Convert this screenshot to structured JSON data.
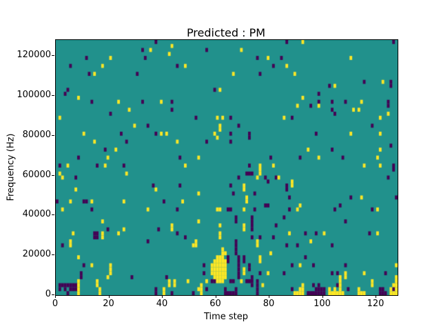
{
  "figure": {
    "title": "Predicted : PM",
    "background": "#ffffff"
  },
  "axes": {
    "xlabel": "Time step",
    "ylabel": "Frequency (Hz)",
    "xticks": [
      0,
      20,
      40,
      60,
      80,
      100,
      120
    ],
    "yticks": [
      0,
      20000,
      40000,
      60000,
      80000,
      100000,
      120000
    ],
    "xlim": [
      0,
      128
    ],
    "ylim": [
      0,
      128000
    ]
  },
  "chart_data": {
    "type": "heatmap",
    "title": "Predicted : PM",
    "xlabel": "Time step",
    "ylabel": "Frequency (Hz)",
    "xlim": [
      0,
      128
    ],
    "ylim": [
      0,
      128000
    ],
    "grid": {
      "time_steps": 128,
      "freq_bins": 64,
      "hz_per_bin": 2000
    },
    "colormap": {
      "name": "viridis-3level",
      "mid_background": "#21918c",
      "low": "#440154",
      "high": "#fde725"
    },
    "legend": "none",
    "cells_high": [
      [
        35,
        61
      ],
      [
        42,
        60
      ],
      [
        20,
        59
      ],
      [
        17,
        57
      ],
      [
        14,
        55
      ],
      [
        8,
        49
      ],
      [
        23,
        48
      ],
      [
        39,
        48
      ],
      [
        27,
        46
      ],
      [
        1,
        44
      ],
      [
        29,
        42
      ],
      [
        43,
        62
      ],
      [
        69,
        61
      ],
      [
        79,
        59
      ],
      [
        48,
        57
      ],
      [
        66,
        55
      ],
      [
        61,
        51
      ],
      [
        60,
        44
      ],
      [
        62,
        44
      ],
      [
        86,
        57
      ],
      [
        89,
        55
      ],
      [
        92,
        49
      ],
      [
        90,
        47
      ],
      [
        85,
        44
      ],
      [
        92,
        63
      ],
      [
        110,
        59
      ],
      [
        122,
        53
      ],
      [
        104,
        52
      ],
      [
        98,
        47
      ],
      [
        111,
        46
      ],
      [
        113,
        46
      ],
      [
        114,
        48
      ],
      [
        124,
        45
      ],
      [
        121,
        44
      ],
      [
        121,
        40
      ],
      [
        10,
        40
      ],
      [
        39,
        40
      ],
      [
        41,
        40
      ],
      [
        14,
        38
      ],
      [
        22,
        36
      ],
      [
        19,
        34
      ],
      [
        4,
        32
      ],
      [
        18,
        32
      ],
      [
        1,
        30
      ],
      [
        2,
        29
      ],
      [
        26,
        30
      ],
      [
        7,
        26
      ],
      [
        37,
        26
      ],
      [
        5,
        23
      ],
      [
        13,
        23
      ],
      [
        25,
        23
      ],
      [
        61,
        42
      ],
      [
        61,
        41
      ],
      [
        59,
        40
      ],
      [
        60,
        39
      ],
      [
        45,
        38
      ],
      [
        53,
        34
      ],
      [
        48,
        32
      ],
      [
        76,
        32
      ],
      [
        76,
        31
      ],
      [
        76,
        30
      ],
      [
        81,
        32
      ],
      [
        75,
        29
      ],
      [
        83,
        29
      ],
      [
        70,
        27
      ],
      [
        70,
        26
      ],
      [
        53,
        25
      ],
      [
        71,
        24
      ],
      [
        71,
        23
      ],
      [
        47,
        23
      ],
      [
        110,
        40
      ],
      [
        94,
        36
      ],
      [
        98,
        34
      ],
      [
        120,
        34
      ],
      [
        121,
        36
      ],
      [
        115,
        32
      ],
      [
        121,
        32
      ],
      [
        88,
        28
      ],
      [
        88,
        27
      ],
      [
        114,
        24
      ],
      [
        91,
        22
      ],
      [
        2,
        21
      ],
      [
        34,
        21
      ],
      [
        17,
        18
      ],
      [
        25,
        16
      ],
      [
        6,
        15
      ],
      [
        17,
        15
      ],
      [
        17,
        14
      ],
      [
        23,
        15
      ],
      [
        5,
        13
      ],
      [
        5,
        12
      ],
      [
        8,
        9
      ],
      [
        13,
        7
      ],
      [
        19,
        4
      ],
      [
        20,
        7
      ],
      [
        20,
        6
      ],
      [
        20,
        5
      ],
      [
        8,
        3
      ],
      [
        8,
        2
      ],
      [
        8,
        1
      ],
      [
        8,
        0
      ],
      [
        15,
        3
      ],
      [
        15,
        2
      ],
      [
        16,
        1
      ],
      [
        16,
        0
      ],
      [
        42,
        3
      ],
      [
        42,
        2
      ],
      [
        40,
        1
      ],
      [
        40,
        0
      ],
      [
        44,
        3
      ],
      [
        44,
        2
      ],
      [
        60,
        21
      ],
      [
        61,
        21
      ],
      [
        70,
        21
      ],
      [
        53,
        18
      ],
      [
        70,
        17
      ],
      [
        70,
        16
      ],
      [
        43,
        17
      ],
      [
        43,
        16
      ],
      [
        52,
        13
      ],
      [
        52,
        12
      ],
      [
        51,
        12
      ],
      [
        49,
        3
      ],
      [
        56,
        3
      ],
      [
        53,
        1
      ],
      [
        63,
        10
      ],
      [
        62,
        11
      ],
      [
        62,
        10
      ],
      [
        61,
        17
      ],
      [
        61,
        15
      ],
      [
        61,
        14
      ],
      [
        75,
        13
      ],
      [
        75,
        12
      ],
      [
        76,
        9
      ],
      [
        76,
        8
      ],
      [
        80,
        10
      ],
      [
        79,
        5
      ],
      [
        70,
        6
      ],
      [
        70,
        5
      ],
      [
        58,
        7
      ],
      [
        58,
        6
      ],
      [
        58,
        5
      ],
      [
        59,
        8
      ],
      [
        59,
        7
      ],
      [
        59,
        6
      ],
      [
        59,
        5
      ],
      [
        59,
        4
      ],
      [
        60,
        9
      ],
      [
        60,
        8
      ],
      [
        60,
        7
      ],
      [
        60,
        6
      ],
      [
        60,
        5
      ],
      [
        60,
        4
      ],
      [
        60,
        3
      ],
      [
        61,
        9
      ],
      [
        61,
        8
      ],
      [
        61,
        7
      ],
      [
        61,
        6
      ],
      [
        61,
        5
      ],
      [
        61,
        4
      ],
      [
        61,
        3
      ],
      [
        62,
        9
      ],
      [
        62,
        8
      ],
      [
        62,
        7
      ],
      [
        62,
        6
      ],
      [
        62,
        5
      ],
      [
        62,
        4
      ],
      [
        62,
        3
      ],
      [
        63,
        8
      ],
      [
        63,
        7
      ],
      [
        63,
        6
      ],
      [
        63,
        5
      ],
      [
        63,
        4
      ],
      [
        54,
        2
      ],
      [
        54,
        1
      ],
      [
        54,
        0
      ],
      [
        69,
        3
      ],
      [
        77,
        2
      ],
      [
        90,
        21
      ],
      [
        120,
        21
      ],
      [
        87,
        15
      ],
      [
        100,
        15
      ],
      [
        120,
        15
      ],
      [
        95,
        13
      ],
      [
        91,
        7
      ],
      [
        108,
        5
      ],
      [
        108,
        4
      ],
      [
        115,
        5
      ],
      [
        127,
        7
      ],
      [
        89,
        0
      ],
      [
        90,
        0
      ],
      [
        91,
        1
      ],
      [
        91,
        0
      ],
      [
        92,
        2
      ],
      [
        92,
        1
      ],
      [
        92,
        0
      ],
      [
        102,
        1
      ],
      [
        102,
        0
      ],
      [
        103,
        0
      ],
      [
        104,
        1
      ],
      [
        104,
        0
      ],
      [
        105,
        0
      ],
      [
        106,
        4
      ],
      [
        106,
        3
      ],
      [
        106,
        2
      ],
      [
        106,
        1
      ],
      [
        106,
        0
      ],
      [
        107,
        0
      ],
      [
        113,
        1
      ],
      [
        113,
        0
      ],
      [
        114,
        0
      ],
      [
        115,
        0
      ],
      [
        118,
        3
      ],
      [
        118,
        2
      ],
      [
        125,
        1
      ],
      [
        125,
        0
      ],
      [
        126,
        2
      ],
      [
        126,
        0
      ],
      [
        127,
        4
      ],
      [
        127,
        3
      ],
      [
        127,
        2
      ],
      [
        127,
        1
      ],
      [
        127,
        0
      ]
    ],
    "cells_low": [
      [
        37,
        63
      ],
      [
        32,
        61
      ],
      [
        33,
        59
      ],
      [
        11,
        59
      ],
      [
        5,
        57
      ],
      [
        12,
        55
      ],
      [
        30,
        55
      ],
      [
        4,
        51
      ],
      [
        3,
        50
      ],
      [
        13,
        48
      ],
      [
        32,
        48
      ],
      [
        20,
        45
      ],
      [
        34,
        42
      ],
      [
        56,
        61
      ],
      [
        75,
        59
      ],
      [
        84,
        59
      ],
      [
        45,
        57
      ],
      [
        81,
        57
      ],
      [
        76,
        55
      ],
      [
        59,
        51
      ],
      [
        43,
        48
      ],
      [
        43,
        46
      ],
      [
        52,
        44
      ],
      [
        65,
        44
      ],
      [
        68,
        42
      ],
      [
        86,
        63
      ],
      [
        126,
        63
      ],
      [
        115,
        53
      ],
      [
        125,
        53
      ],
      [
        125,
        52
      ],
      [
        102,
        52
      ],
      [
        98,
        50
      ],
      [
        98,
        48
      ],
      [
        95,
        47
      ],
      [
        103,
        48
      ],
      [
        108,
        48
      ],
      [
        103,
        46
      ],
      [
        104,
        45
      ],
      [
        88,
        44
      ],
      [
        124,
        48
      ],
      [
        124,
        47
      ],
      [
        125,
        37
      ],
      [
        118,
        42
      ],
      [
        24,
        40
      ],
      [
        37,
        40
      ],
      [
        26,
        38
      ],
      [
        18,
        36
      ],
      [
        8,
        34
      ],
      [
        1,
        32
      ],
      [
        15,
        32
      ],
      [
        25,
        32
      ],
      [
        7,
        29
      ],
      [
        36,
        27
      ],
      [
        0,
        23
      ],
      [
        10,
        23
      ],
      [
        11,
        23
      ],
      [
        40,
        23
      ],
      [
        65,
        40
      ],
      [
        72,
        40
      ],
      [
        72,
        39
      ],
      [
        56,
        38
      ],
      [
        65,
        38
      ],
      [
        46,
        34
      ],
      [
        80,
        34
      ],
      [
        72,
        32
      ],
      [
        71,
        30
      ],
      [
        72,
        30
      ],
      [
        73,
        30
      ],
      [
        68,
        29
      ],
      [
        78,
        29
      ],
      [
        79,
        28
      ],
      [
        82,
        29
      ],
      [
        65,
        27
      ],
      [
        46,
        27
      ],
      [
        66,
        25
      ],
      [
        74,
        25
      ],
      [
        78,
        22
      ],
      [
        79,
        22
      ],
      [
        97,
        40
      ],
      [
        103,
        36
      ],
      [
        91,
        34
      ],
      [
        107,
        34
      ],
      [
        126,
        32
      ],
      [
        126,
        31
      ],
      [
        124,
        29
      ],
      [
        86,
        27
      ],
      [
        86,
        26
      ],
      [
        87,
        24
      ],
      [
        110,
        24
      ],
      [
        127,
        24
      ],
      [
        106,
        22
      ],
      [
        13,
        21
      ],
      [
        19,
        16
      ],
      [
        38,
        16
      ],
      [
        14,
        15
      ],
      [
        15,
        15
      ],
      [
        14,
        14
      ],
      [
        15,
        14
      ],
      [
        2,
        12
      ],
      [
        34,
        13
      ],
      [
        10,
        7
      ],
      [
        9,
        5
      ],
      [
        9,
        4
      ],
      [
        28,
        4
      ],
      [
        1,
        2
      ],
      [
        1,
        1
      ],
      [
        2,
        2
      ],
      [
        3,
        2
      ],
      [
        3,
        1
      ],
      [
        4,
        2
      ],
      [
        5,
        2
      ],
      [
        5,
        1
      ],
      [
        6,
        2
      ],
      [
        6,
        1
      ],
      [
        7,
        2
      ],
      [
        7,
        1
      ],
      [
        4,
        0
      ],
      [
        37,
        1
      ],
      [
        37,
        0
      ],
      [
        43,
        0
      ],
      [
        51,
        0
      ],
      [
        45,
        21
      ],
      [
        64,
        21
      ],
      [
        65,
        21
      ],
      [
        74,
        21
      ],
      [
        67,
        19
      ],
      [
        67,
        18
      ],
      [
        73,
        19
      ],
      [
        73,
        18
      ],
      [
        73,
        17
      ],
      [
        73,
        16
      ],
      [
        73,
        14
      ],
      [
        45,
        15
      ],
      [
        48,
        14
      ],
      [
        55,
        7
      ],
      [
        55,
        5
      ],
      [
        58,
        3
      ],
      [
        59,
        3
      ],
      [
        67,
        13
      ],
      [
        67,
        12
      ],
      [
        67,
        11
      ],
      [
        67,
        10
      ],
      [
        70,
        9
      ],
      [
        70,
        8
      ],
      [
        72,
        7
      ],
      [
        72,
        6
      ],
      [
        73,
        4
      ],
      [
        73,
        3
      ],
      [
        73,
        2
      ],
      [
        76,
        14
      ],
      [
        76,
        5
      ],
      [
        81,
        14
      ],
      [
        82,
        17
      ],
      [
        85,
        19
      ],
      [
        64,
        9
      ],
      [
        64,
        8
      ],
      [
        68,
        9
      ],
      [
        68,
        8
      ],
      [
        68,
        7
      ],
      [
        68,
        6
      ],
      [
        68,
        5
      ],
      [
        68,
        4
      ],
      [
        65,
        3
      ],
      [
        66,
        3
      ],
      [
        41,
        4
      ],
      [
        56,
        1
      ],
      [
        63,
        1
      ],
      [
        63,
        0
      ],
      [
        64,
        0
      ],
      [
        65,
        0
      ],
      [
        66,
        0
      ],
      [
        67,
        1
      ],
      [
        67,
        0
      ],
      [
        71,
        3
      ],
      [
        72,
        3
      ],
      [
        75,
        3
      ],
      [
        75,
        2
      ],
      [
        75,
        1
      ],
      [
        75,
        0
      ],
      [
        87,
        21
      ],
      [
        104,
        21
      ],
      [
        118,
        21
      ],
      [
        108,
        18
      ],
      [
        93,
        15
      ],
      [
        97,
        15
      ],
      [
        117,
        15
      ],
      [
        86,
        12
      ],
      [
        90,
        12
      ],
      [
        103,
        12
      ],
      [
        93,
        9
      ],
      [
        88,
        7
      ],
      [
        96,
        7
      ],
      [
        108,
        7
      ],
      [
        85,
        5
      ],
      [
        103,
        5
      ],
      [
        105,
        5
      ],
      [
        123,
        5
      ],
      [
        88,
        1
      ],
      [
        96,
        2
      ],
      [
        98,
        2
      ],
      [
        97,
        1
      ],
      [
        98,
        1
      ],
      [
        99,
        1
      ],
      [
        100,
        1
      ],
      [
        94,
        0
      ],
      [
        95,
        0
      ],
      [
        96,
        0
      ],
      [
        97,
        0
      ],
      [
        98,
        0
      ],
      [
        99,
        0
      ],
      [
        100,
        0
      ],
      [
        105,
        2
      ],
      [
        109,
        1
      ],
      [
        121,
        1
      ],
      [
        122,
        1
      ],
      [
        126,
        1
      ],
      [
        121,
        0
      ],
      [
        122,
        0
      ],
      [
        123,
        0
      ]
    ]
  }
}
